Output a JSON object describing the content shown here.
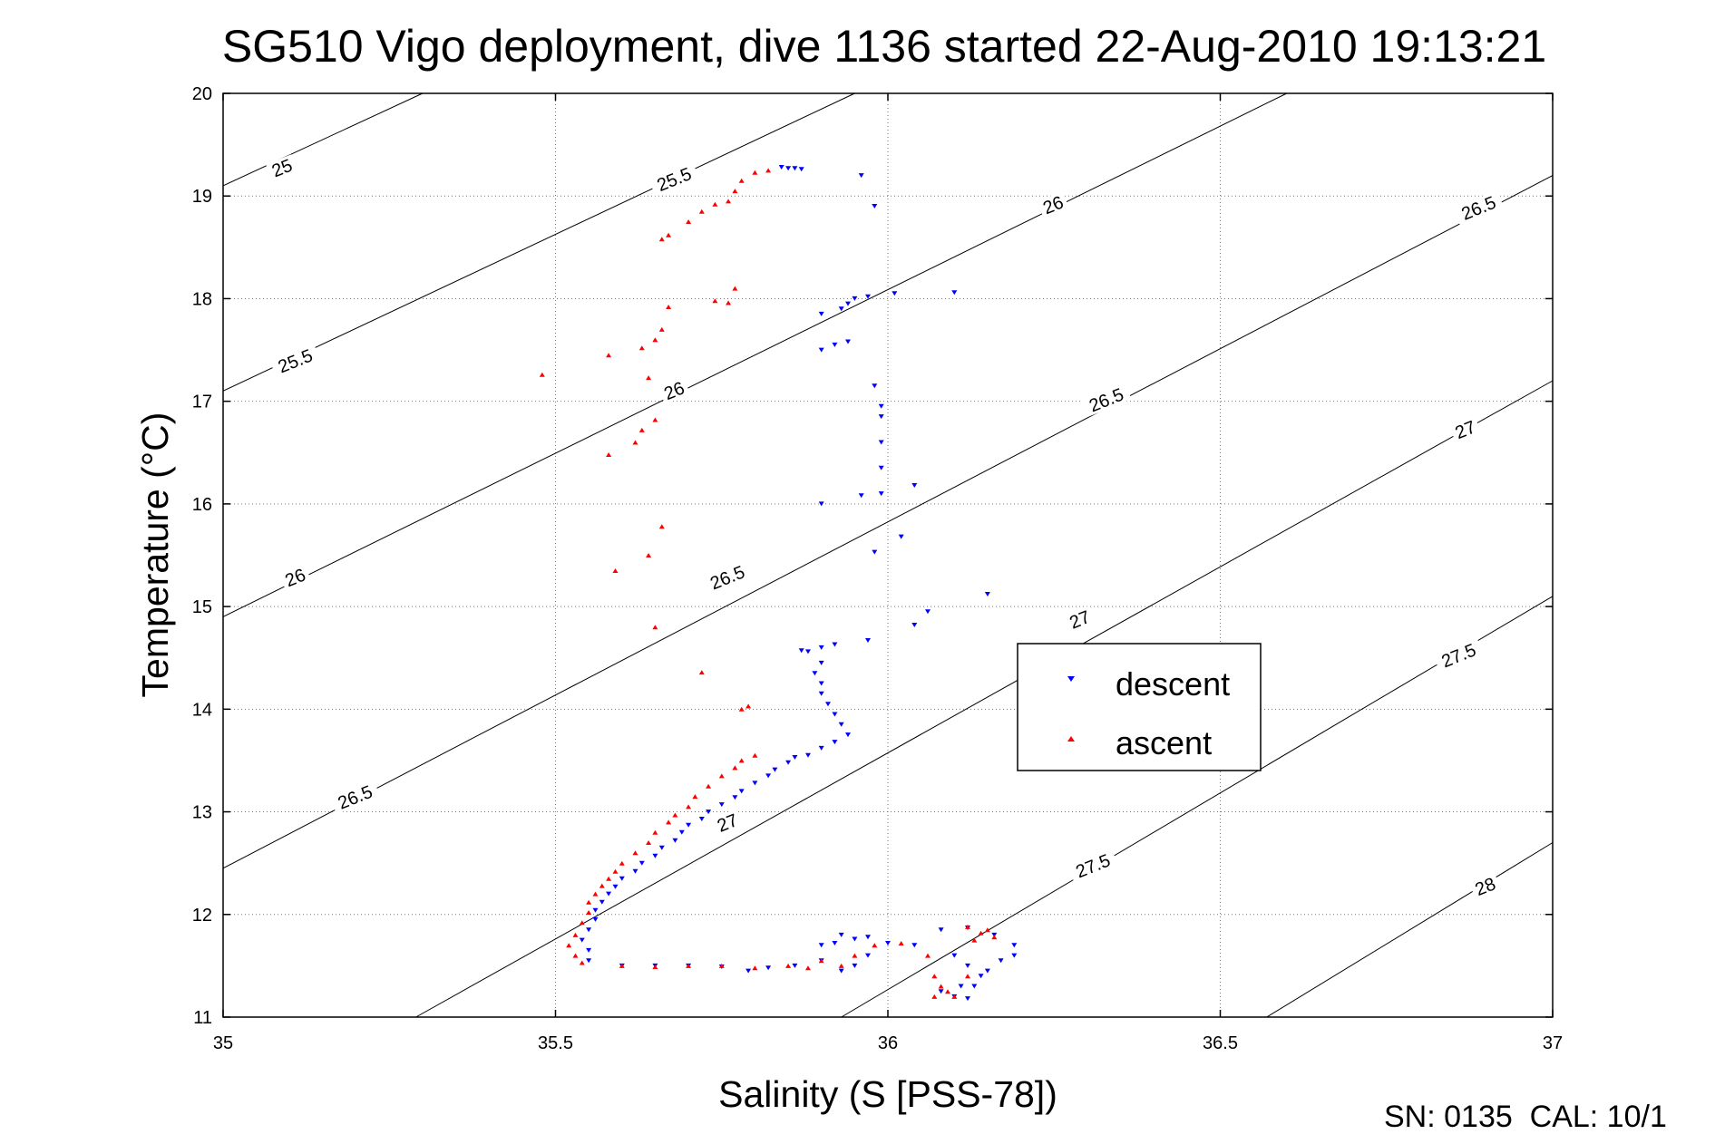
{
  "chart_data": {
    "type": "scatter",
    "title": "SG510 Vigo deployment, dive 1136 started 22-Aug-2010 19:13:21",
    "xlabel": "Salinity (S [PSS-78])",
    "ylabel": "Temperature (°C)",
    "xlim": [
      35,
      37
    ],
    "ylim": [
      11,
      20
    ],
    "xticks": [
      "35",
      "35.5",
      "36",
      "36.5",
      "37"
    ],
    "yticks": [
      "11",
      "12",
      "13",
      "14",
      "15",
      "16",
      "17",
      "18",
      "19",
      "20"
    ],
    "grid": true,
    "legend_position": "right",
    "footer": "SN: 0135  CAL: 10/1",
    "contour_lines": [
      {
        "label": "25",
        "points": [
          [
            35.0,
            19.1
          ],
          [
            35.3,
            20.0
          ]
        ]
      },
      {
        "label": "25.5",
        "points": [
          [
            35.0,
            17.1
          ],
          [
            35.95,
            20.0
          ]
        ]
      },
      {
        "label": "26",
        "points": [
          [
            35.0,
            14.9
          ],
          [
            36.6,
            20.0
          ]
        ]
      },
      {
        "label": "26.5",
        "points": [
          [
            35.0,
            12.45
          ],
          [
            37.0,
            19.2
          ]
        ]
      },
      {
        "label": "27",
        "points": [
          [
            35.29,
            11.0
          ],
          [
            37.0,
            17.2
          ]
        ]
      },
      {
        "label": "27.5",
        "points": [
          [
            35.93,
            11.0
          ],
          [
            37.0,
            15.1
          ]
        ]
      },
      {
        "label": "28",
        "points": [
          [
            36.57,
            11.0
          ],
          [
            37.0,
            12.7
          ]
        ]
      }
    ],
    "contour_labels": [
      {
        "text": "25",
        "x": 35.09,
        "y": 19.25
      },
      {
        "text": "25.5",
        "x": 35.11,
        "y": 17.37
      },
      {
        "text": "25.5",
        "x": 35.68,
        "y": 19.14
      },
      {
        "text": "26",
        "x": 35.11,
        "y": 15.26
      },
      {
        "text": "26",
        "x": 35.68,
        "y": 17.08
      },
      {
        "text": "26",
        "x": 36.25,
        "y": 18.89
      },
      {
        "text": "26.5",
        "x": 35.2,
        "y": 13.12
      },
      {
        "text": "26.5",
        "x": 35.76,
        "y": 15.26
      },
      {
        "text": "26.5",
        "x": 36.33,
        "y": 16.99
      },
      {
        "text": "26.5",
        "x": 36.89,
        "y": 18.86
      },
      {
        "text": "27",
        "x": 35.76,
        "y": 12.87
      },
      {
        "text": "27",
        "x": 36.29,
        "y": 14.85
      },
      {
        "text": "27",
        "x": 36.87,
        "y": 16.7
      },
      {
        "text": "27.5",
        "x": 36.31,
        "y": 12.45
      },
      {
        "text": "27.5",
        "x": 36.86,
        "y": 14.5
      },
      {
        "text": "28",
        "x": 36.9,
        "y": 12.25
      }
    ],
    "series": [
      {
        "name": "descent",
        "color": "#0000ff",
        "marker": "triangle-down",
        "points": [
          [
            35.85,
            19.27
          ],
          [
            35.86,
            19.27
          ],
          [
            35.84,
            19.28
          ],
          [
            35.87,
            19.26
          ],
          [
            35.96,
            19.2
          ],
          [
            35.98,
            18.9
          ],
          [
            35.97,
            18.02
          ],
          [
            35.95,
            18.0
          ],
          [
            35.94,
            17.95
          ],
          [
            35.93,
            17.9
          ],
          [
            35.9,
            17.85
          ],
          [
            36.01,
            18.05
          ],
          [
            36.1,
            18.06
          ],
          [
            35.92,
            17.55
          ],
          [
            35.9,
            17.5
          ],
          [
            35.94,
            17.58
          ],
          [
            35.98,
            17.15
          ],
          [
            35.99,
            16.95
          ],
          [
            35.99,
            16.85
          ],
          [
            35.99,
            16.6
          ],
          [
            35.99,
            16.35
          ],
          [
            36.04,
            16.18
          ],
          [
            35.96,
            16.08
          ],
          [
            35.99,
            16.1
          ],
          [
            35.9,
            16.0
          ],
          [
            36.15,
            15.12
          ],
          [
            35.98,
            15.53
          ],
          [
            36.02,
            15.68
          ],
          [
            36.06,
            14.95
          ],
          [
            36.04,
            14.82
          ],
          [
            35.97,
            14.67
          ],
          [
            35.92,
            14.63
          ],
          [
            35.9,
            14.6
          ],
          [
            35.88,
            14.56
          ],
          [
            35.87,
            14.57
          ],
          [
            35.9,
            14.45
          ],
          [
            35.89,
            14.35
          ],
          [
            35.9,
            14.25
          ],
          [
            35.9,
            14.15
          ],
          [
            35.91,
            14.05
          ],
          [
            35.92,
            13.95
          ],
          [
            35.93,
            13.85
          ],
          [
            35.94,
            13.75
          ],
          [
            35.92,
            13.68
          ],
          [
            35.9,
            13.62
          ],
          [
            35.88,
            13.55
          ],
          [
            35.86,
            13.53
          ],
          [
            35.85,
            13.48
          ],
          [
            35.83,
            13.41
          ],
          [
            35.82,
            13.35
          ],
          [
            35.8,
            13.28
          ],
          [
            35.78,
            13.2
          ],
          [
            35.77,
            13.14
          ],
          [
            35.75,
            13.07
          ],
          [
            35.73,
            13.0
          ],
          [
            35.72,
            12.93
          ],
          [
            35.7,
            12.87
          ],
          [
            35.69,
            12.8
          ],
          [
            35.68,
            12.72
          ],
          [
            35.66,
            12.65
          ],
          [
            35.65,
            12.57
          ],
          [
            35.63,
            12.5
          ],
          [
            35.62,
            12.42
          ],
          [
            35.6,
            12.35
          ],
          [
            35.59,
            12.27
          ],
          [
            35.58,
            12.2
          ],
          [
            35.57,
            12.12
          ],
          [
            35.56,
            12.04
          ],
          [
            35.56,
            11.95
          ],
          [
            35.55,
            11.85
          ],
          [
            35.54,
            11.75
          ],
          [
            35.55,
            11.65
          ],
          [
            35.55,
            11.55
          ],
          [
            35.6,
            11.5
          ],
          [
            35.65,
            11.5
          ],
          [
            35.7,
            11.5
          ],
          [
            35.75,
            11.49
          ],
          [
            35.79,
            11.45
          ],
          [
            35.82,
            11.48
          ],
          [
            35.86,
            11.5
          ],
          [
            35.9,
            11.7
          ],
          [
            35.92,
            11.72
          ],
          [
            35.93,
            11.8
          ],
          [
            35.95,
            11.76
          ],
          [
            35.97,
            11.78
          ],
          [
            36.0,
            11.72
          ],
          [
            36.04,
            11.7
          ],
          [
            36.08,
            11.85
          ],
          [
            36.12,
            11.87
          ],
          [
            36.16,
            11.8
          ],
          [
            36.19,
            11.7
          ],
          [
            35.9,
            11.55
          ],
          [
            35.93,
            11.45
          ],
          [
            35.95,
            11.5
          ],
          [
            35.97,
            11.6
          ],
          [
            36.1,
            11.6
          ],
          [
            36.12,
            11.5
          ],
          [
            36.14,
            11.4
          ],
          [
            36.11,
            11.3
          ],
          [
            36.08,
            11.25
          ],
          [
            36.1,
            11.2
          ],
          [
            36.12,
            11.18
          ],
          [
            36.13,
            11.3
          ],
          [
            36.15,
            11.45
          ],
          [
            36.17,
            11.55
          ],
          [
            36.19,
            11.6
          ]
        ]
      },
      {
        "name": "ascent",
        "color": "#ff0000",
        "marker": "triangle-up",
        "points": [
          [
            35.82,
            19.25
          ],
          [
            35.8,
            19.23
          ],
          [
            35.78,
            19.15
          ],
          [
            35.77,
            19.05
          ],
          [
            35.76,
            18.95
          ],
          [
            35.74,
            18.92
          ],
          [
            35.72,
            18.85
          ],
          [
            35.7,
            18.75
          ],
          [
            35.67,
            18.62
          ],
          [
            35.66,
            18.58
          ],
          [
            35.77,
            18.1
          ],
          [
            35.76,
            17.96
          ],
          [
            35.74,
            17.98
          ],
          [
            35.67,
            17.92
          ],
          [
            35.66,
            17.7
          ],
          [
            35.65,
            17.6
          ],
          [
            35.63,
            17.52
          ],
          [
            35.58,
            17.45
          ],
          [
            35.48,
            17.26
          ],
          [
            35.64,
            17.23
          ],
          [
            35.65,
            16.82
          ],
          [
            35.63,
            16.72
          ],
          [
            35.62,
            16.6
          ],
          [
            35.58,
            16.48
          ],
          [
            35.66,
            15.78
          ],
          [
            35.64,
            15.5
          ],
          [
            35.59,
            15.35
          ],
          [
            35.65,
            14.8
          ],
          [
            35.72,
            14.36
          ],
          [
            35.79,
            14.03
          ],
          [
            35.78,
            14.0
          ],
          [
            35.8,
            13.55
          ],
          [
            35.78,
            13.5
          ],
          [
            35.77,
            13.43
          ],
          [
            35.75,
            13.35
          ],
          [
            35.73,
            13.25
          ],
          [
            35.71,
            13.15
          ],
          [
            35.7,
            13.05
          ],
          [
            35.68,
            12.97
          ],
          [
            35.67,
            12.9
          ],
          [
            35.65,
            12.8
          ],
          [
            35.64,
            12.7
          ],
          [
            35.62,
            12.6
          ],
          [
            35.6,
            12.5
          ],
          [
            35.59,
            12.42
          ],
          [
            35.58,
            12.35
          ],
          [
            35.57,
            12.28
          ],
          [
            35.56,
            12.2
          ],
          [
            35.55,
            12.12
          ],
          [
            35.55,
            12.02
          ],
          [
            35.54,
            11.92
          ],
          [
            35.53,
            11.8
          ],
          [
            35.52,
            11.7
          ],
          [
            35.53,
            11.6
          ],
          [
            35.54,
            11.53
          ],
          [
            35.6,
            11.5
          ],
          [
            35.65,
            11.49
          ],
          [
            35.7,
            11.5
          ],
          [
            35.75,
            11.5
          ],
          [
            35.8,
            11.48
          ],
          [
            35.85,
            11.5
          ],
          [
            35.88,
            11.48
          ],
          [
            35.9,
            11.55
          ],
          [
            35.93,
            11.5
          ],
          [
            35.95,
            11.6
          ],
          [
            35.98,
            11.7
          ],
          [
            36.02,
            11.72
          ],
          [
            36.06,
            11.6
          ],
          [
            36.07,
            11.4
          ],
          [
            36.08,
            11.3
          ],
          [
            36.07,
            11.2
          ],
          [
            36.09,
            11.25
          ],
          [
            36.1,
            11.2
          ],
          [
            36.12,
            11.4
          ],
          [
            36.13,
            11.75
          ],
          [
            36.12,
            11.88
          ],
          [
            36.14,
            11.82
          ],
          [
            36.16,
            11.78
          ],
          [
            36.15,
            11.85
          ]
        ]
      }
    ]
  }
}
